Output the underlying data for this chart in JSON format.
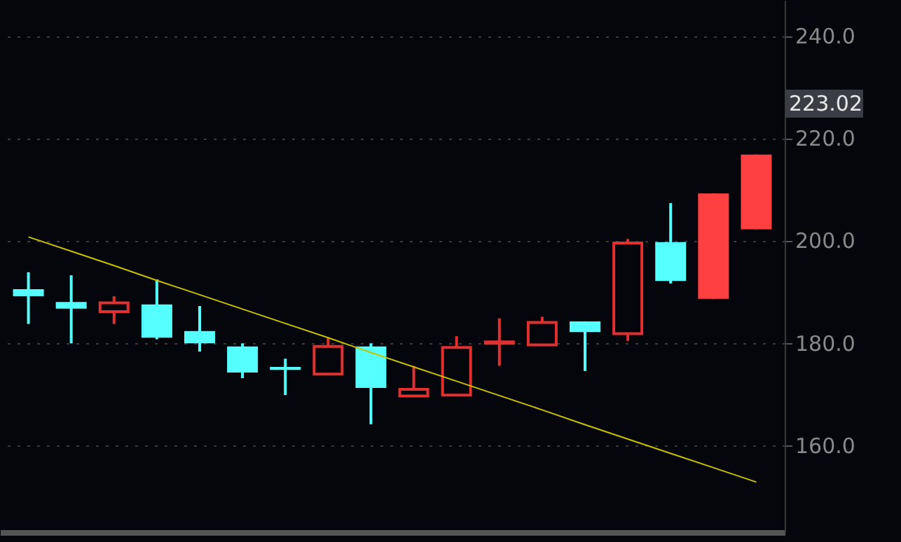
{
  "chart_data": {
    "type": "candlestick",
    "categories": [
      null,
      null,
      null,
      null,
      null,
      null,
      null,
      null,
      null,
      null,
      null,
      null,
      null,
      null,
      null,
      null,
      null,
      null
    ],
    "ohlc": [
      [
        190.5,
        193.8,
        183.7,
        189.1
      ],
      [
        188.0,
        193.2,
        179.9,
        186.7
      ],
      [
        186.1,
        189.1,
        183.7,
        187.8
      ],
      [
        187.5,
        192.4,
        180.7,
        181.0
      ],
      [
        182.3,
        187.2,
        178.3,
        179.9
      ],
      [
        179.3,
        179.9,
        173.1,
        174.2
      ],
      [
        175.3,
        176.9,
        169.8,
        174.7
      ],
      [
        173.9,
        181.0,
        173.9,
        179.3
      ],
      [
        179.3,
        179.9,
        164.1,
        171.2
      ],
      [
        169.6,
        175.5,
        169.6,
        170.9
      ],
      [
        169.8,
        181.3,
        169.8,
        179.1
      ],
      [
        179.9,
        184.8,
        175.5,
        180.2
      ],
      [
        179.6,
        185.1,
        179.6,
        184.0
      ],
      [
        184.2,
        184.2,
        174.5,
        182.1
      ],
      [
        181.8,
        200.3,
        180.4,
        199.5
      ],
      [
        199.7,
        207.3,
        191.6,
        192.1
      ],
      [
        209.2,
        209.2,
        188.6,
        188.6
      ],
      [
        216.8,
        216.8,
        202.2,
        202.2
      ]
    ],
    "colors": [
      "#55ffff",
      "#55ffff",
      "#e03030",
      "#55ffff",
      "#55ffff",
      "#55ffff",
      "#55ffff",
      "#e03030",
      "#55ffff",
      "#e03030",
      "#e03030",
      "#e03030",
      "#e03030",
      "#55ffff",
      "#e03030",
      "#55ffff",
      "#ff4040",
      "#ff4040"
    ],
    "series": [
      {
        "type": "line",
        "color": "#c8c000",
        "values": [
          200.7,
          197.9,
          195.1,
          192.2,
          189.4,
          186.6,
          183.8,
          181.0,
          178.1,
          175.3,
          172.5,
          169.7,
          166.9,
          164.0,
          161.2,
          158.4,
          155.6,
          152.8
        ]
      }
    ],
    "ylim": [
      143,
      247
    ],
    "yticks": [
      {
        "value": 160,
        "label": "160.0"
      },
      {
        "value": 180,
        "label": "180.0"
      },
      {
        "value": 200,
        "label": "200.0"
      },
      {
        "value": 220,
        "label": "220.0"
      },
      {
        "value": 240,
        "label": "240.0"
      }
    ],
    "annotations": [
      "223.02"
    ],
    "grid": "y",
    "tick_labels": "y"
  }
}
